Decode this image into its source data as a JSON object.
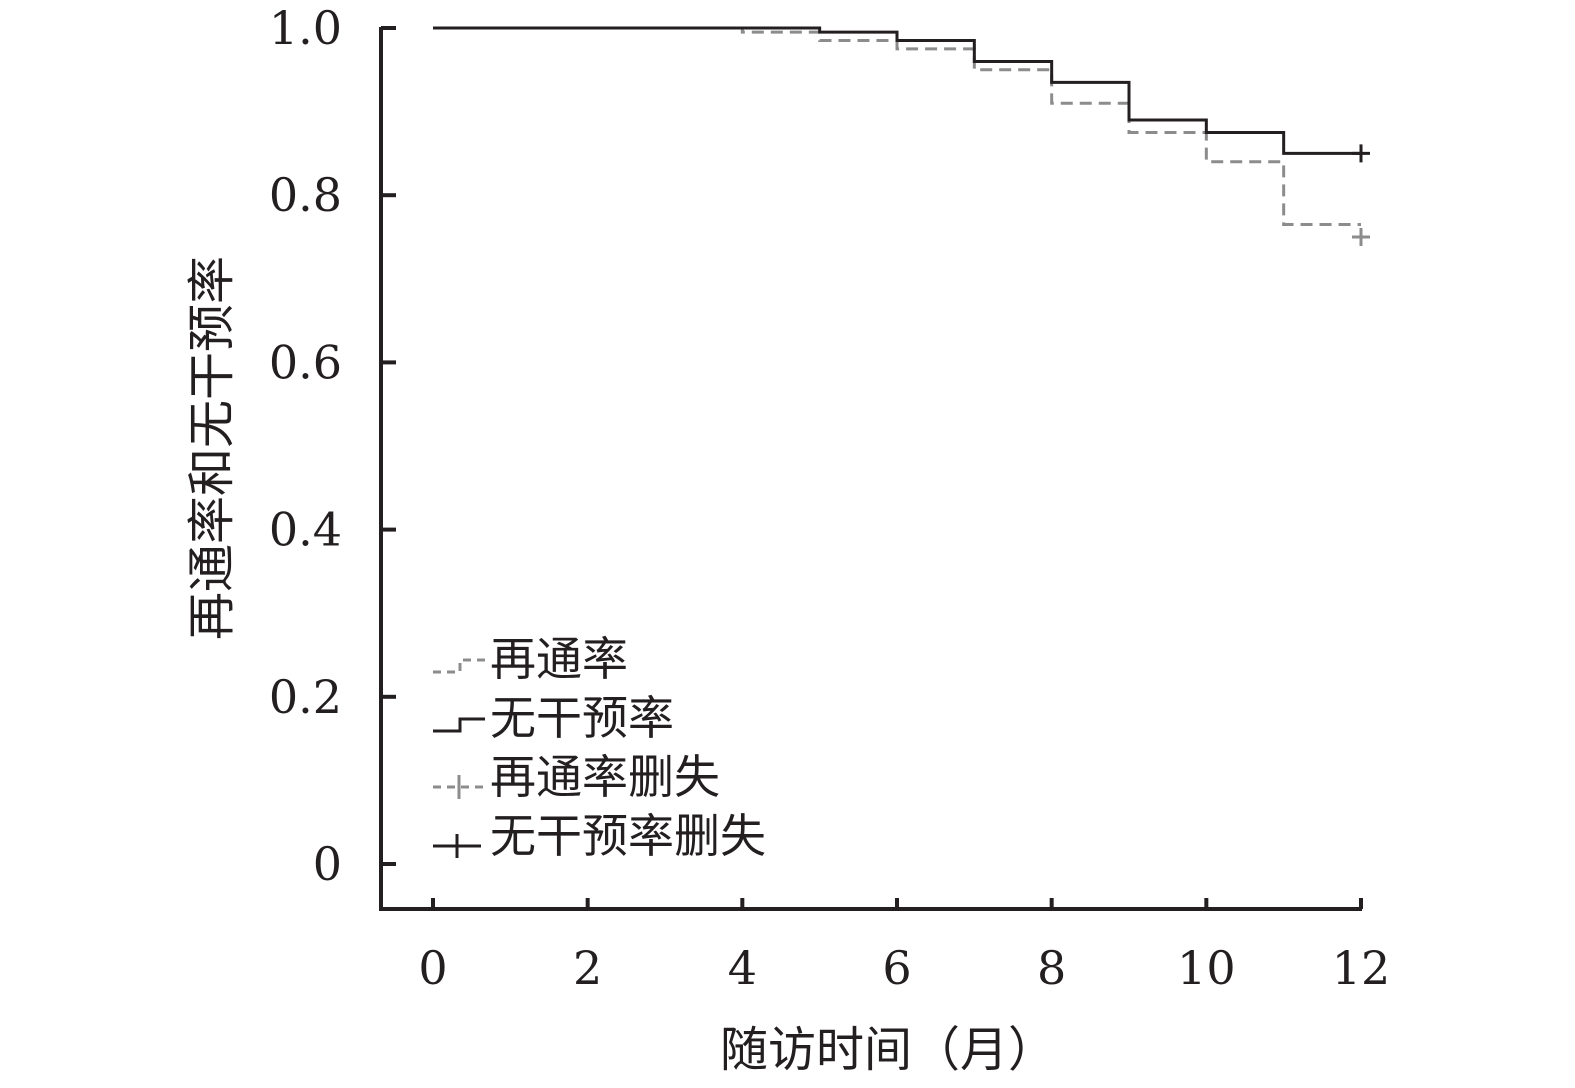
{
  "chart_data": {
    "type": "line",
    "title": "",
    "xlabel": "随访时间（月）",
    "ylabel": "再通率和无干预率",
    "xlim": [
      0,
      12
    ],
    "ylim": [
      0,
      1.0
    ],
    "x_ticks": [
      "0",
      "2",
      "4",
      "6",
      "8",
      "10",
      "12"
    ],
    "y_ticks": [
      "0",
      "0.2",
      "0.4",
      "0.6",
      "0.8",
      "1.0"
    ],
    "grid": false,
    "legend_position": "bottom-left",
    "series": [
      {
        "name": "再通率",
        "style": "dashed-step",
        "color": "#8c8c8c",
        "x": [
          0,
          4,
          5,
          6,
          7,
          8,
          9,
          10,
          11,
          12
        ],
        "y": [
          1.0,
          0.995,
          0.985,
          0.975,
          0.95,
          0.91,
          0.875,
          0.84,
          0.765,
          0.765
        ]
      },
      {
        "name": "无干预率",
        "style": "solid-step",
        "color": "#231f20",
        "x": [
          0,
          5,
          6,
          7,
          8,
          9,
          10,
          11,
          12
        ],
        "y": [
          1.0,
          0.995,
          0.985,
          0.96,
          0.935,
          0.89,
          0.875,
          0.85,
          0.85
        ]
      }
    ],
    "censored": [
      {
        "name": "再通率删失",
        "color": "#8c8c8c",
        "x": 12,
        "y": 0.75
      },
      {
        "name": "无干预率删失",
        "color": "#231f20",
        "x": 12,
        "y": 0.85
      }
    ]
  }
}
